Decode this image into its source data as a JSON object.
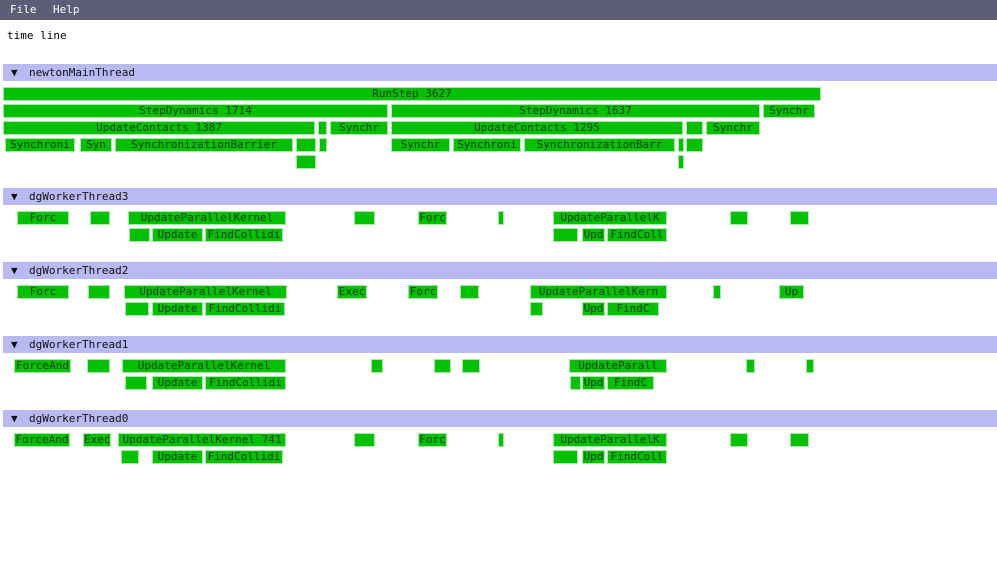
{
  "menu": [
    "File",
    "Help"
  ],
  "title": "time line",
  "threads": [
    {
      "name": "newtonMainThread",
      "labels": [
        "RunStep 3627",
        "StepDynamics 1714",
        "StepDynamics 1637",
        "Synchr",
        "UpdateContacts 1387",
        "Synchr",
        "UpdateContacts 1295",
        "Synchr",
        "Synchroni",
        "Syn",
        "SynchronizationBarrier",
        "Synchr",
        "Synchroni",
        "SynchronizationBarr"
      ]
    },
    {
      "name": "dgWorkerThread3",
      "labels": [
        "Forc",
        "UpdateParallelKernel",
        "Forc",
        "UpdateParallelK",
        "Update",
        "FindCollidi",
        "Upd",
        "FindColl"
      ]
    },
    {
      "name": "dgWorkerThread2",
      "labels": [
        "Forc",
        "UpdateParallelKernel",
        "Exec",
        "Forc",
        "UpdateParallelKern",
        "Up",
        "Update",
        "FindCollidi",
        "Upd",
        "FindC"
      ]
    },
    {
      "name": "dgWorkerThread1",
      "labels": [
        "ForceAnd",
        "UpdateParallelKernel",
        "UpdateParall",
        "Update",
        "FindCollidi",
        "Upd",
        "FindC"
      ]
    },
    {
      "name": "dgWorkerThread0",
      "labels": [
        "ForceAnd",
        "Exec",
        "UpdateParallelKernel 741",
        "Forc",
        "UpdateParallelK",
        "Update",
        "FindCollidi",
        "Upd",
        "FindColl"
      ]
    }
  ]
}
